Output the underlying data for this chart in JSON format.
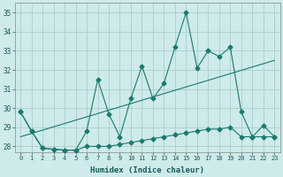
{
  "x": [
    0,
    1,
    2,
    3,
    4,
    5,
    6,
    7,
    8,
    9,
    10,
    11,
    12,
    13,
    14,
    15,
    16,
    17,
    18,
    19,
    20,
    21,
    22,
    23
  ],
  "y_main": [
    29.8,
    28.8,
    27.9,
    27.85,
    27.8,
    27.8,
    28.8,
    31.5,
    29.7,
    28.5,
    30.5,
    32.2,
    30.5,
    31.3,
    33.2,
    35.0,
    32.1,
    33.0,
    32.7,
    33.2,
    29.8,
    28.5,
    29.1,
    28.5
  ],
  "y_low": [
    29.8,
    28.8,
    27.9,
    27.85,
    27.8,
    27.8,
    28.0,
    28.0,
    28.0,
    28.1,
    28.2,
    28.3,
    28.4,
    28.5,
    28.6,
    28.7,
    28.8,
    28.9,
    28.9,
    29.0,
    28.5,
    28.5,
    28.5,
    28.5
  ],
  "y_trend_x": [
    0,
    23
  ],
  "y_trend_y": [
    28.5,
    32.5
  ],
  "bg_color": "#ceeaea",
  "grid_color": "#aacece",
  "line_color": "#1a7a6e",
  "xlabel": "Humidex (Indice chaleur)",
  "xlim": [
    -0.5,
    23.5
  ],
  "ylim": [
    27.7,
    35.5
  ],
  "yticks": [
    28,
    29,
    30,
    31,
    32,
    33,
    34,
    35
  ],
  "xticks": [
    0,
    1,
    2,
    3,
    4,
    5,
    6,
    7,
    8,
    9,
    10,
    11,
    12,
    13,
    14,
    15,
    16,
    17,
    18,
    19,
    20,
    21,
    22,
    23
  ],
  "markersize": 2.5,
  "linewidth": 0.8
}
